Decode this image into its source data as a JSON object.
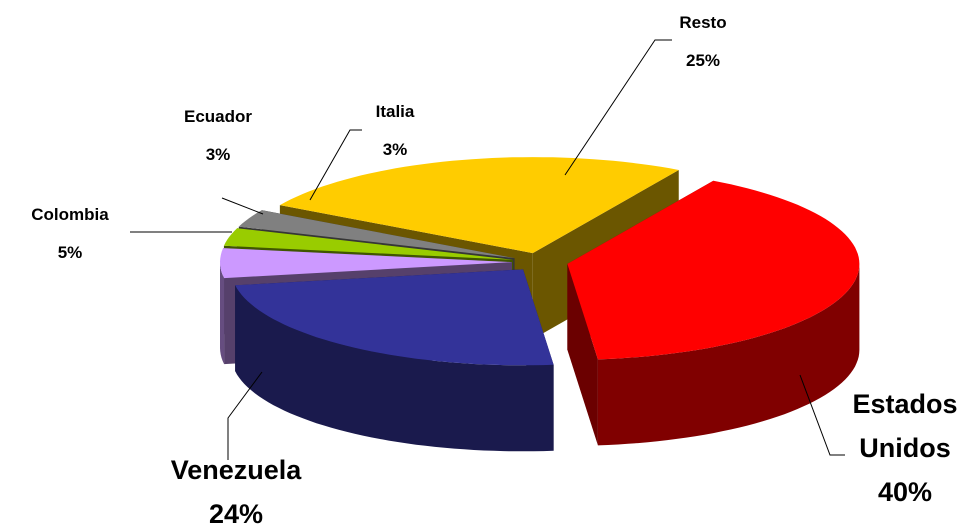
{
  "chart_data": {
    "type": "pie3d",
    "categories": [
      "Resto",
      "Estados Unidos",
      "Venezuela",
      "Colombia",
      "Ecuador",
      "Italia"
    ],
    "values": [
      25,
      40,
      24,
      5,
      3,
      3
    ],
    "value_labels": [
      "25%",
      "40%",
      "24%",
      "5%",
      "3%",
      "3%"
    ],
    "colors": [
      "#ffcc00",
      "#ff0000",
      "#333399",
      "#cc99ff",
      "#99cc00",
      "#808080"
    ]
  }
}
